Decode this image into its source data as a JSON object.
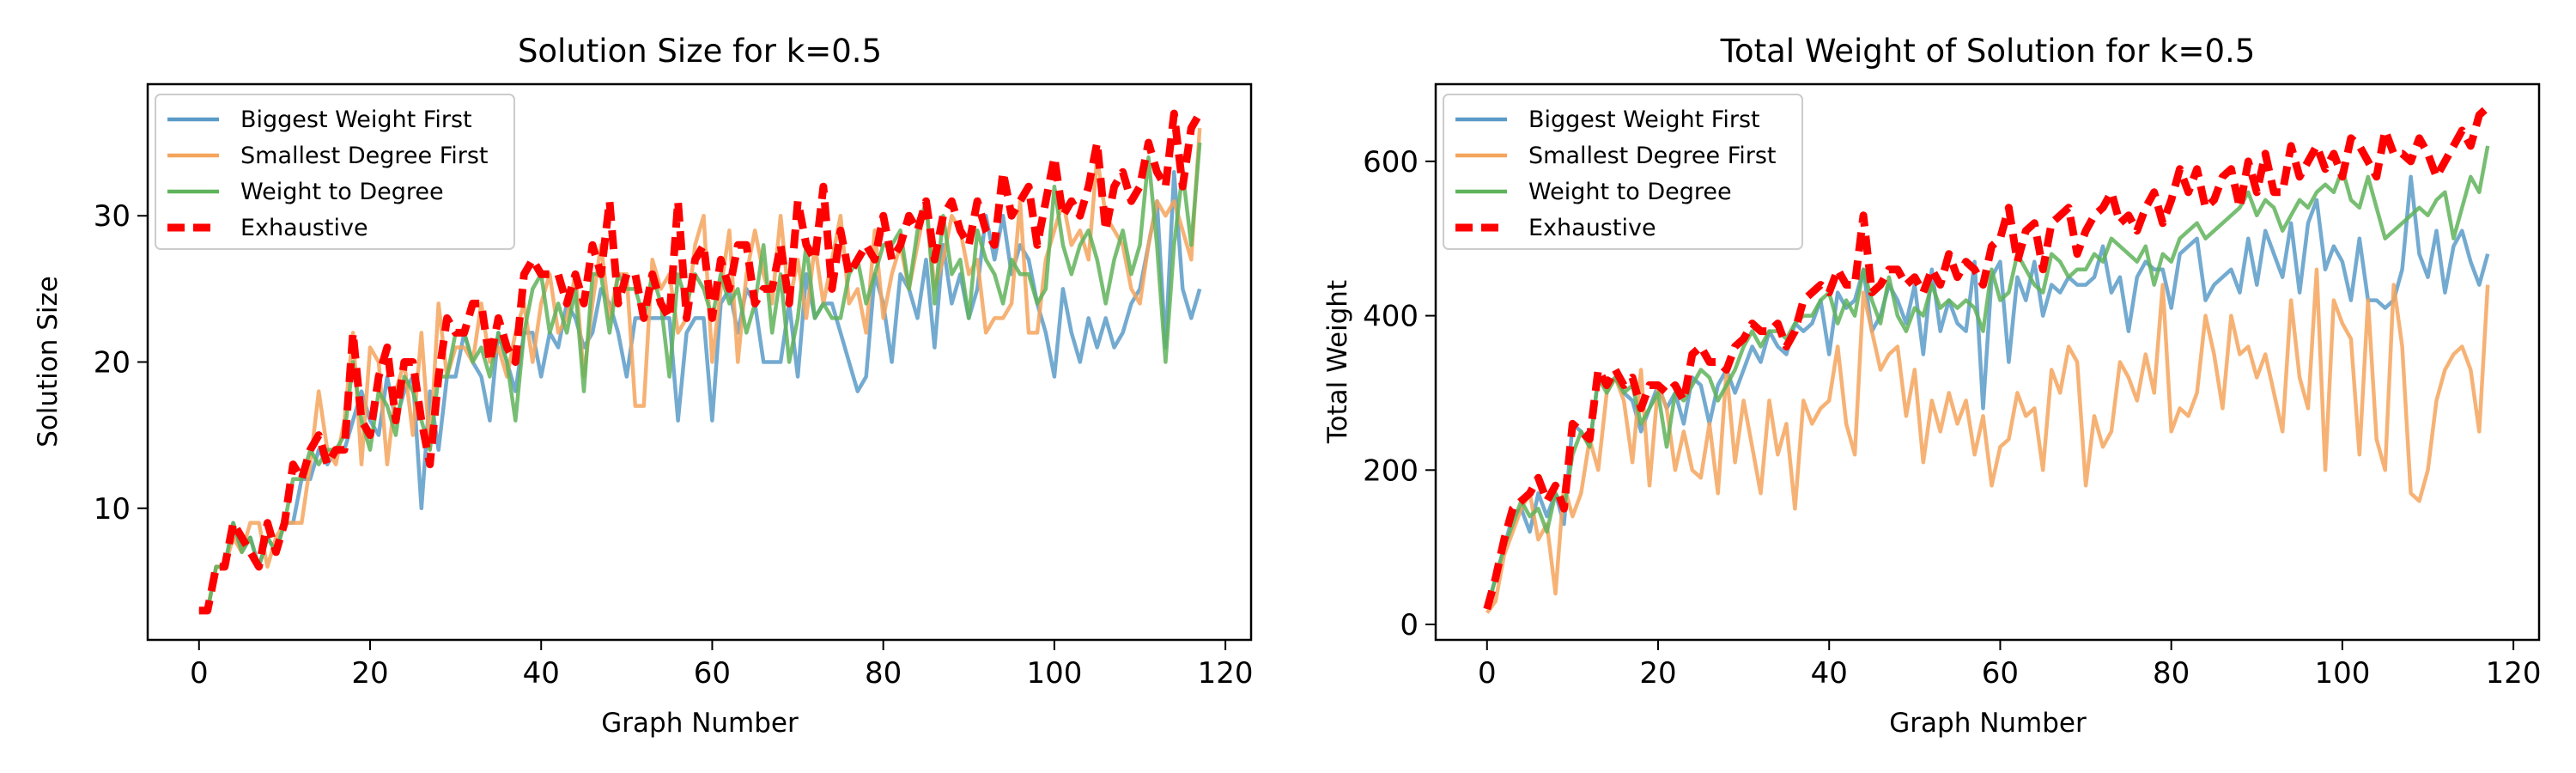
{
  "chart_data": [
    {
      "type": "line",
      "title": "Solution Size for k=0.5",
      "xlabel": "Graph Number",
      "ylabel": "Solution Size",
      "xlim": [
        -6,
        123
      ],
      "ylim": [
        1,
        39
      ],
      "xticks": [
        0,
        20,
        40,
        60,
        80,
        100,
        120
      ],
      "yticks": [
        10,
        20,
        30
      ],
      "grid": false,
      "legend_position": "top-left",
      "series": [
        {
          "name": "Biggest Weight First",
          "color": "#5b9bc8",
          "values": [
            3,
            3,
            6,
            6,
            9,
            7,
            8,
            6,
            8,
            7,
            9,
            9,
            12,
            12,
            14,
            13,
            14,
            14,
            16,
            18,
            16,
            15,
            19,
            16,
            18,
            19,
            10,
            18,
            14,
            19,
            19,
            22,
            20,
            19,
            16,
            22,
            20,
            18,
            22,
            22,
            19,
            22,
            21,
            24,
            23,
            21,
            22,
            25,
            24,
            22,
            19,
            23,
            23,
            23,
            23,
            23,
            16,
            22,
            23,
            23,
            16,
            24,
            25,
            22,
            25,
            24,
            20,
            20,
            20,
            24,
            19,
            26,
            23,
            24,
            24,
            22,
            20,
            18,
            19,
            26,
            24,
            20,
            26,
            25,
            23,
            27,
            21,
            28,
            24,
            26,
            23,
            25,
            30,
            27,
            30,
            26,
            28,
            27,
            24,
            22,
            19,
            25,
            22,
            20,
            23,
            21,
            23,
            21,
            22,
            24,
            25,
            28,
            31,
            21,
            33,
            25,
            23,
            25
          ]
        },
        {
          "name": "Smallest Degree First",
          "color": "#f5a55d",
          "values": [
            3,
            3,
            6,
            6,
            8,
            7,
            9,
            9,
            6,
            8,
            9,
            9,
            9,
            13,
            18,
            14,
            13,
            16,
            22,
            13,
            21,
            20,
            13,
            18,
            20,
            15,
            22,
            14,
            24,
            19,
            21,
            21,
            20,
            24,
            20,
            21,
            19,
            22,
            24,
            20,
            24,
            26,
            22,
            23,
            26,
            19,
            24,
            28,
            23,
            26,
            26,
            17,
            17,
            27,
            25,
            26,
            22,
            23,
            28,
            30,
            20,
            25,
            29,
            20,
            26,
            29,
            26,
            24,
            30,
            24,
            27,
            23,
            28,
            24,
            27,
            30,
            24,
            25,
            22,
            29,
            23,
            26,
            28,
            25,
            28,
            31,
            25,
            27,
            30,
            29,
            26,
            27,
            22,
            23,
            23,
            24,
            31,
            22,
            22,
            27,
            29,
            31,
            28,
            29,
            27,
            34,
            30,
            29,
            28,
            25,
            24,
            28,
            31,
            30,
            31,
            29,
            27,
            36
          ]
        },
        {
          "name": "Weight to Degree",
          "color": "#5fb35a",
          "values": [
            3,
            3,
            6,
            6,
            9,
            7,
            8,
            6,
            8,
            7,
            9,
            12,
            12,
            14,
            13,
            14,
            14,
            15,
            20,
            16,
            14,
            18,
            17,
            15,
            19,
            18,
            16,
            14,
            19,
            19,
            22,
            22,
            20,
            21,
            19,
            22,
            20,
            16,
            22,
            25,
            26,
            22,
            24,
            22,
            25,
            18,
            26,
            26,
            22,
            26,
            25,
            25,
            23,
            26,
            24,
            19,
            26,
            24,
            26,
            25,
            23,
            26,
            24,
            25,
            22,
            24,
            28,
            22,
            26,
            20,
            23,
            28,
            23,
            24,
            23,
            23,
            26,
            27,
            24,
            26,
            28,
            28,
            29,
            25,
            29,
            31,
            24,
            30,
            26,
            27,
            23,
            29,
            27,
            26,
            24,
            27,
            26,
            26,
            24,
            25,
            32,
            28,
            26,
            28,
            29,
            27,
            24,
            27,
            29,
            26,
            28,
            34,
            28,
            20,
            28,
            33,
            28,
            35
          ]
        },
        {
          "name": "Exhaustive",
          "color": "#ff0000",
          "values": [
            3,
            3,
            6,
            6,
            9,
            8,
            7,
            6,
            9,
            7,
            9,
            13,
            12,
            14,
            15,
            13,
            14,
            14,
            22,
            16,
            15,
            19,
            21,
            16,
            20,
            20,
            16,
            13,
            19,
            23,
            22,
            22,
            24,
            24,
            20,
            23,
            21,
            20,
            26,
            27,
            26,
            26,
            26,
            24,
            26,
            24,
            28,
            26,
            31,
            24,
            26,
            26,
            23,
            26,
            24,
            23,
            31,
            23,
            27,
            28,
            23,
            27,
            25,
            28,
            28,
            24,
            25,
            25,
            28,
            24,
            31,
            28,
            27,
            32,
            25,
            29,
            26,
            27,
            28,
            27,
            30,
            27,
            28,
            30,
            29,
            31,
            27,
            30,
            31,
            29,
            28,
            31,
            29,
            28,
            33,
            30,
            31,
            32,
            28,
            31,
            34,
            30,
            31,
            30,
            32,
            35,
            29,
            32,
            33,
            31,
            32,
            35,
            33,
            32,
            37,
            32,
            36,
            37
          ]
        }
      ]
    },
    {
      "type": "line",
      "title": "Total Weight of Solution for k=0.5",
      "xlabel": "Graph Number",
      "ylabel": "Total Weight",
      "xlim": [
        -6,
        123
      ],
      "ylim": [
        -20,
        700
      ],
      "xticks": [
        0,
        20,
        40,
        60,
        80,
        100,
        120
      ],
      "yticks": [
        0,
        200,
        400,
        600
      ],
      "grid": false,
      "legend_position": "top-left",
      "series": [
        {
          "name": "Biggest Weight First",
          "color": "#5b9bc8",
          "values": [
            20,
            60,
            100,
            140,
            150,
            120,
            170,
            140,
            170,
            130,
            260,
            250,
            230,
            320,
            310,
            320,
            300,
            290,
            250,
            280,
            310,
            280,
            300,
            260,
            320,
            310,
            260,
            310,
            330,
            300,
            330,
            360,
            340,
            380,
            360,
            350,
            390,
            380,
            390,
            420,
            350,
            430,
            410,
            420,
            460,
            380,
            400,
            440,
            420,
            390,
            440,
            350,
            460,
            380,
            420,
            390,
            380,
            470,
            280,
            450,
            470,
            340,
            450,
            420,
            470,
            400,
            440,
            430,
            450,
            440,
            440,
            450,
            490,
            430,
            450,
            380,
            450,
            470,
            460,
            460,
            410,
            480,
            490,
            500,
            420,
            440,
            450,
            460,
            430,
            500,
            440,
            510,
            480,
            450,
            520,
            430,
            520,
            550,
            460,
            490,
            470,
            420,
            500,
            420,
            420,
            410,
            420,
            460,
            580,
            480,
            450,
            510,
            430,
            490,
            510,
            470,
            440,
            480
          ]
        },
        {
          "name": "Smallest Degree First",
          "color": "#f5a55d",
          "values": [
            15,
            30,
            90,
            120,
            150,
            170,
            110,
            130,
            40,
            180,
            140,
            170,
            240,
            200,
            300,
            320,
            290,
            210,
            330,
            180,
            310,
            280,
            200,
            250,
            200,
            190,
            260,
            170,
            330,
            210,
            290,
            230,
            170,
            290,
            220,
            260,
            150,
            290,
            260,
            280,
            290,
            360,
            260,
            220,
            430,
            380,
            330,
            350,
            360,
            270,
            330,
            210,
            290,
            250,
            300,
            260,
            290,
            220,
            270,
            180,
            230,
            240,
            300,
            270,
            280,
            200,
            330,
            300,
            360,
            340,
            180,
            270,
            230,
            250,
            340,
            320,
            290,
            350,
            300,
            440,
            250,
            280,
            270,
            300,
            400,
            350,
            280,
            400,
            350,
            360,
            320,
            350,
            300,
            250,
            420,
            320,
            280,
            460,
            200,
            420,
            390,
            370,
            220,
            420,
            240,
            200,
            440,
            360,
            170,
            160,
            200,
            290,
            330,
            350,
            360,
            330,
            250,
            440
          ]
        },
        {
          "name": "Weight to Degree",
          "color": "#5fb35a",
          "values": [
            20,
            60,
            100,
            130,
            160,
            140,
            150,
            120,
            170,
            150,
            220,
            250,
            230,
            320,
            300,
            320,
            300,
            310,
            260,
            280,
            300,
            230,
            300,
            290,
            310,
            330,
            320,
            290,
            310,
            330,
            360,
            380,
            360,
            380,
            380,
            370,
            390,
            400,
            400,
            420,
            430,
            390,
            420,
            400,
            460,
            420,
            390,
            450,
            400,
            380,
            410,
            400,
            440,
            410,
            420,
            410,
            420,
            410,
            380,
            460,
            420,
            430,
            480,
            460,
            440,
            430,
            480,
            470,
            450,
            460,
            460,
            480,
            470,
            500,
            490,
            480,
            470,
            490,
            440,
            480,
            470,
            500,
            510,
            520,
            500,
            510,
            520,
            530,
            540,
            560,
            530,
            550,
            540,
            510,
            530,
            550,
            540,
            560,
            570,
            560,
            590,
            550,
            540,
            580,
            540,
            500,
            510,
            520,
            530,
            540,
            530,
            550,
            560,
            500,
            540,
            580,
            560,
            620
          ]
        },
        {
          "name": "Exhaustive",
          "color": "#ff0000",
          "values": [
            20,
            60,
            110,
            150,
            160,
            170,
            190,
            160,
            180,
            150,
            260,
            250,
            240,
            330,
            310,
            330,
            310,
            320,
            280,
            310,
            310,
            300,
            310,
            290,
            350,
            360,
            340,
            340,
            330,
            360,
            370,
            390,
            380,
            380,
            390,
            360,
            380,
            420,
            430,
            440,
            430,
            460,
            440,
            440,
            530,
            430,
            440,
            460,
            460,
            440,
            450,
            430,
            460,
            440,
            480,
            450,
            470,
            460,
            440,
            490,
            500,
            540,
            470,
            510,
            520,
            460,
            520,
            530,
            540,
            480,
            510,
            530,
            540,
            560,
            520,
            530,
            510,
            540,
            560,
            520,
            550,
            590,
            560,
            590,
            540,
            550,
            580,
            590,
            540,
            600,
            560,
            610,
            560,
            560,
            620,
            580,
            600,
            620,
            590,
            610,
            580,
            630,
            620,
            600,
            580,
            640,
            610,
            610,
            600,
            630,
            610,
            580,
            600,
            620,
            640,
            620,
            660,
            670
          ]
        }
      ]
    }
  ]
}
